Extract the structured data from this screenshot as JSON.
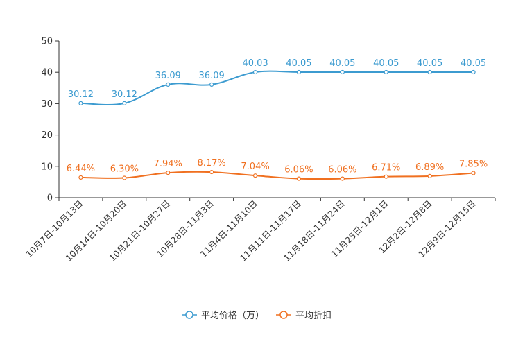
{
  "chart_data": {
    "type": "line",
    "title": "",
    "xlabel": "",
    "ylabel": "",
    "ylim": [
      0,
      50
    ],
    "yticks": [
      0,
      10,
      20,
      30,
      40,
      50
    ],
    "grid": false,
    "legend_position": "bottom-center",
    "categories": [
      "10月7日-10月13日",
      "10月14日-10月20日",
      "10月21日-10月27日",
      "10月28日-11月3日",
      "11月4日-11月10日",
      "11月11日-11月17日",
      "11月18日-11月24日",
      "11月25日-12月1日",
      "12月2日-12月8日",
      "12月9日-12月15日"
    ],
    "series": [
      {
        "name": "平均价格（万）",
        "color": "#3c9bd0",
        "values": [
          30.12,
          30.12,
          36.09,
          36.09,
          40.03,
          40.05,
          40.05,
          40.05,
          40.05,
          40.05
        ],
        "labels": [
          "30.12",
          "30.12",
          "36.09",
          "36.09",
          "40.03",
          "40.05",
          "40.05",
          "40.05",
          "40.05",
          "40.05"
        ]
      },
      {
        "name": "平均折扣",
        "color": "#f07020",
        "values": [
          6.44,
          6.3,
          7.94,
          8.17,
          7.04,
          6.06,
          6.06,
          6.71,
          6.89,
          7.85
        ],
        "labels": [
          "6.44%",
          "6.30%",
          "7.94%",
          "8.17%",
          "7.04%",
          "6.06%",
          "6.06%",
          "6.71%",
          "6.89%",
          "7.85%"
        ]
      }
    ]
  }
}
